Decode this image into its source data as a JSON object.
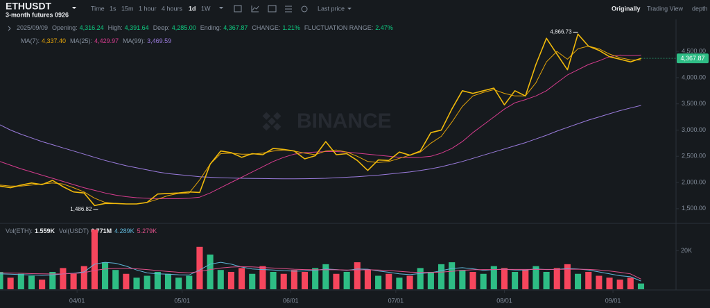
{
  "header": {
    "symbol": "ETHUSDT",
    "contract": "3-month futures 0926",
    "intervals": [
      "Time",
      "1s",
      "15m",
      "1 hour",
      "4 hours",
      "1d",
      "1W"
    ],
    "active_interval": 5,
    "price_type": "Last price",
    "views": [
      "Originally",
      "Trading View",
      "depth"
    ],
    "active_view": 0
  },
  "watermark": "BINANCE",
  "info": {
    "date": "2025/09/09",
    "items": [
      {
        "name": "Opening:",
        "value": "4,316.24"
      },
      {
        "name": "High:",
        "value": "4,391.64"
      },
      {
        "name": "Deep:",
        "value": "4,285.00"
      },
      {
        "name": "Ending:",
        "value": "4,367.87"
      },
      {
        "name": "CHANGE:",
        "value": "1.21%"
      },
      {
        "name": "FLUCTUATION RANGE:",
        "value": "2.47%"
      }
    ]
  },
  "chart_data": {
    "type": "line",
    "x": [
      "03/10",
      "03/13",
      "03/16",
      "03/19",
      "03/22",
      "03/25",
      "03/28",
      "03/31",
      "04/03",
      "04/06",
      "04/09",
      "04/12",
      "04/15",
      "04/18",
      "04/21",
      "04/24",
      "04/27",
      "04/30",
      "05/03",
      "05/06",
      "05/09",
      "05/12",
      "05/15",
      "05/18",
      "05/21",
      "05/24",
      "05/27",
      "05/30",
      "06/02",
      "06/05",
      "06/08",
      "06/11",
      "06/14",
      "06/17",
      "06/20",
      "06/23",
      "06/26",
      "06/29",
      "07/02",
      "07/05",
      "07/08",
      "07/11",
      "07/14",
      "07/17",
      "07/20",
      "07/23",
      "07/26",
      "07/29",
      "08/01",
      "08/04",
      "08/07",
      "08/10",
      "08/13",
      "08/16",
      "08/19",
      "08/22",
      "08/25",
      "08/28",
      "08/31",
      "09/03",
      "09/06",
      "09/09"
    ],
    "xlim": [
      "03/10",
      "09/19"
    ],
    "xticks": [
      "04/01",
      "05/01",
      "06/01",
      "07/01",
      "08/01",
      "09/01"
    ],
    "ylim": [
      1220,
      5110
    ],
    "yticks": [
      {
        "value": 1500,
        "label": "1,500.00"
      },
      {
        "value": 2000,
        "label": "2,000.00"
      },
      {
        "value": 2500,
        "label": "2,500.00"
      },
      {
        "value": 3000,
        "label": "3,000.00"
      },
      {
        "value": 3500,
        "label": "3,500.00"
      },
      {
        "value": 4000,
        "label": "4,000.00"
      },
      {
        "value": 4500,
        "label": "4,500.00"
      }
    ],
    "series": [
      {
        "color": "#f0b90b",
        "values": [
          1930,
          1900,
          1950,
          1990,
          1960,
          2040,
          1920,
          1820,
          1800,
          1560,
          1600,
          1600,
          1590,
          1590,
          1620,
          1780,
          1790,
          1800,
          1820,
          1810,
          2350,
          2600,
          2570,
          2480,
          2550,
          2530,
          2650,
          2630,
          2600,
          2450,
          2510,
          2780,
          2530,
          2550,
          2420,
          2230,
          2430,
          2420,
          2580,
          2520,
          2600,
          2950,
          3000,
          3400,
          3750,
          3700,
          3750,
          3800,
          3480,
          3750,
          3650,
          4250,
          4750,
          4450,
          4150,
          4830,
          4600,
          4520,
          4400,
          4350,
          4300,
          4367.87
        ]
      },
      {
        "name": "MA(7):",
        "value_label": "4,337.40",
        "color": "#e5a50a",
        "values": [
          1950,
          1930,
          1930,
          1950,
          1970,
          1990,
          1970,
          1900,
          1820,
          1700,
          1620,
          1600,
          1590,
          1590,
          1620,
          1680,
          1750,
          1790,
          1800,
          2050,
          2350,
          2550,
          2560,
          2540,
          2540,
          2560,
          2600,
          2620,
          2600,
          2560,
          2530,
          2600,
          2620,
          2580,
          2500,
          2400,
          2380,
          2400,
          2460,
          2520,
          2580,
          2750,
          2880,
          3150,
          3450,
          3650,
          3720,
          3770,
          3700,
          3650,
          3650,
          3900,
          4300,
          4500,
          4350,
          4550,
          4600,
          4550,
          4450,
          4380,
          4340,
          4337.4
        ]
      },
      {
        "name": "MA(25):",
        "value_label": "4,429.97",
        "color": "#d63c8e",
        "values": [
          2400,
          2330,
          2260,
          2200,
          2140,
          2080,
          2020,
          1960,
          1900,
          1850,
          1800,
          1760,
          1730,
          1710,
          1700,
          1690,
          1690,
          1690,
          1700,
          1720,
          1800,
          1900,
          2000,
          2100,
          2200,
          2300,
          2400,
          2480,
          2540,
          2570,
          2580,
          2590,
          2590,
          2580,
          2560,
          2540,
          2520,
          2500,
          2480,
          2470,
          2480,
          2500,
          2560,
          2650,
          2780,
          2950,
          3100,
          3250,
          3400,
          3520,
          3580,
          3650,
          3750,
          3900,
          4050,
          4150,
          4250,
          4320,
          4400,
          4430,
          4420,
          4429.97
        ]
      },
      {
        "name": "MA(99):",
        "value_label": "3,469.59",
        "color": "#9a7bdc",
        "values": [
          3100,
          3000,
          2920,
          2850,
          2780,
          2720,
          2660,
          2600,
          2540,
          2480,
          2420,
          2370,
          2320,
          2280,
          2240,
          2200,
          2170,
          2150,
          2130,
          2110,
          2100,
          2090,
          2085,
          2080,
          2078,
          2075,
          2072,
          2070,
          2070,
          2072,
          2075,
          2080,
          2090,
          2100,
          2110,
          2125,
          2140,
          2160,
          2180,
          2200,
          2230,
          2260,
          2300,
          2350,
          2400,
          2460,
          2520,
          2580,
          2640,
          2700,
          2760,
          2830,
          2900,
          2980,
          3050,
          3120,
          3190,
          3250,
          3310,
          3370,
          3420,
          3469.59
        ]
      }
    ],
    "annotations": [
      {
        "x": "08/22",
        "value": 4866.73,
        "label": "4,866.73"
      },
      {
        "x": "04/07",
        "value": 1486.82,
        "label": "1,486.82"
      }
    ],
    "last_price": {
      "value": 4367.87,
      "label": "4,367.87",
      "color": "#2ebd85"
    }
  },
  "volume": {
    "ylim": [
      0,
      32000
    ],
    "yticks": [
      {
        "value": 20000,
        "label": "20K"
      }
    ],
    "up_color": "#2ebd85",
    "down_color": "#f6465d",
    "legend": [
      {
        "name": "Vol(ETH):",
        "value": "1.559K"
      },
      {
        "name": "Vol(USDT)",
        "value": "6.771M"
      }
    ],
    "values": [
      9000,
      6000,
      8000,
      7000,
      5000,
      9000,
      11000,
      8000,
      12000,
      31000,
      14000,
      10000,
      8000,
      6000,
      7000,
      9000,
      8000,
      6000,
      7000,
      22000,
      18000,
      10000,
      9000,
      11000,
      8000,
      12000,
      9000,
      8000,
      10000,
      9000,
      11000,
      13000,
      8000,
      9000,
      14000,
      10000,
      7000,
      8000,
      6000,
      7000,
      11000,
      9000,
      13000,
      14000,
      10000,
      9000,
      8000,
      12000,
      11000,
      9000,
      10000,
      12000,
      9000,
      11000,
      13000,
      8000,
      9000,
      7000,
      6000,
      5000,
      6000,
      3000
    ],
    "ma_series": [
      {
        "value_label": "4.289K",
        "color": "#5fb6d9",
        "values": [
          8000,
          7800,
          7600,
          7400,
          7200,
          7400,
          8000,
          8300,
          9000,
          13000,
          14000,
          13500,
          12000,
          10000,
          8500,
          8000,
          7800,
          7500,
          7400,
          10000,
          13000,
          14000,
          13000,
          11500,
          10500,
          10200,
          10000,
          9600,
          9400,
          9500,
          9800,
          10500,
          10200,
          9800,
          10500,
          10400,
          9500,
          8800,
          8000,
          7600,
          8200,
          8600,
          9600,
          10800,
          11200,
          10600,
          9800,
          10200,
          10400,
          10000,
          10000,
          10500,
          10200,
          10300,
          10800,
          10500,
          10000,
          9000,
          8000,
          7000,
          6500,
          4289
        ]
      },
      {
        "value_label": "5.279K",
        "color": "#e0518a",
        "values": [
          8500,
          8400,
          8300,
          8100,
          8000,
          7900,
          8000,
          8200,
          8600,
          9800,
          10500,
          10800,
          10800,
          10600,
          10200,
          9700,
          9200,
          8800,
          8500,
          9200,
          10200,
          11000,
          11500,
          11700,
          11600,
          11300,
          11000,
          10700,
          10400,
          10200,
          10100,
          10100,
          10100,
          10000,
          10000,
          10100,
          10000,
          9700,
          9300,
          8900,
          8700,
          8700,
          8900,
          9300,
          9800,
          10100,
          10200,
          10200,
          10300,
          10300,
          10300,
          10300,
          10300,
          10300,
          10400,
          10400,
          10300,
          10000,
          9500,
          8800,
          8000,
          5279
        ]
      }
    ]
  }
}
